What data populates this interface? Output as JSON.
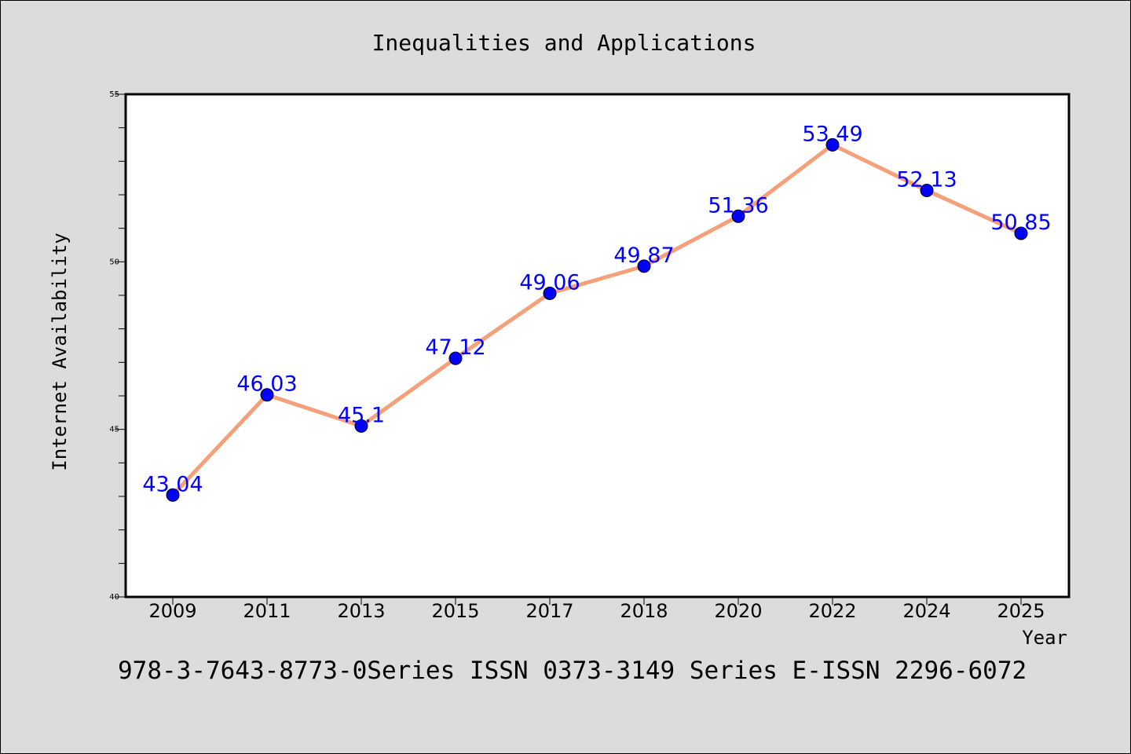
{
  "chart_data": {
    "type": "line",
    "title": "Inequalities and Applications",
    "xlabel": "Year",
    "ylabel": "Internet Availability",
    "categories": [
      "2009",
      "2011",
      "2013",
      "2015",
      "2017",
      "2018",
      "2020",
      "2022",
      "2024",
      "2025"
    ],
    "series": [
      {
        "values": [
          43.04,
          46.03,
          45.1,
          47.12,
          49.06,
          49.87,
          51.36,
          53.49,
          52.13,
          50.85
        ],
        "labels": [
          "43.04",
          "46.03",
          "45.1",
          "47.12",
          "49.06",
          "49.87",
          "51.36",
          "53.49",
          "52.13",
          "50.85"
        ],
        "line_color": "#f4a07a",
        "marker_color": "#0000ff"
      }
    ],
    "ylim": [
      40,
      55
    ],
    "yticks": [
      "40",
      "45",
      "50",
      "55"
    ],
    "grid": false,
    "footer": "978-3-7643-8773-0Series ISSN 0373-3149 Series E-ISSN 2296-6072",
    "background_color": "#dcdcdc",
    "plot_background_color": "#ffffff",
    "label_color": "#0000ff"
  }
}
